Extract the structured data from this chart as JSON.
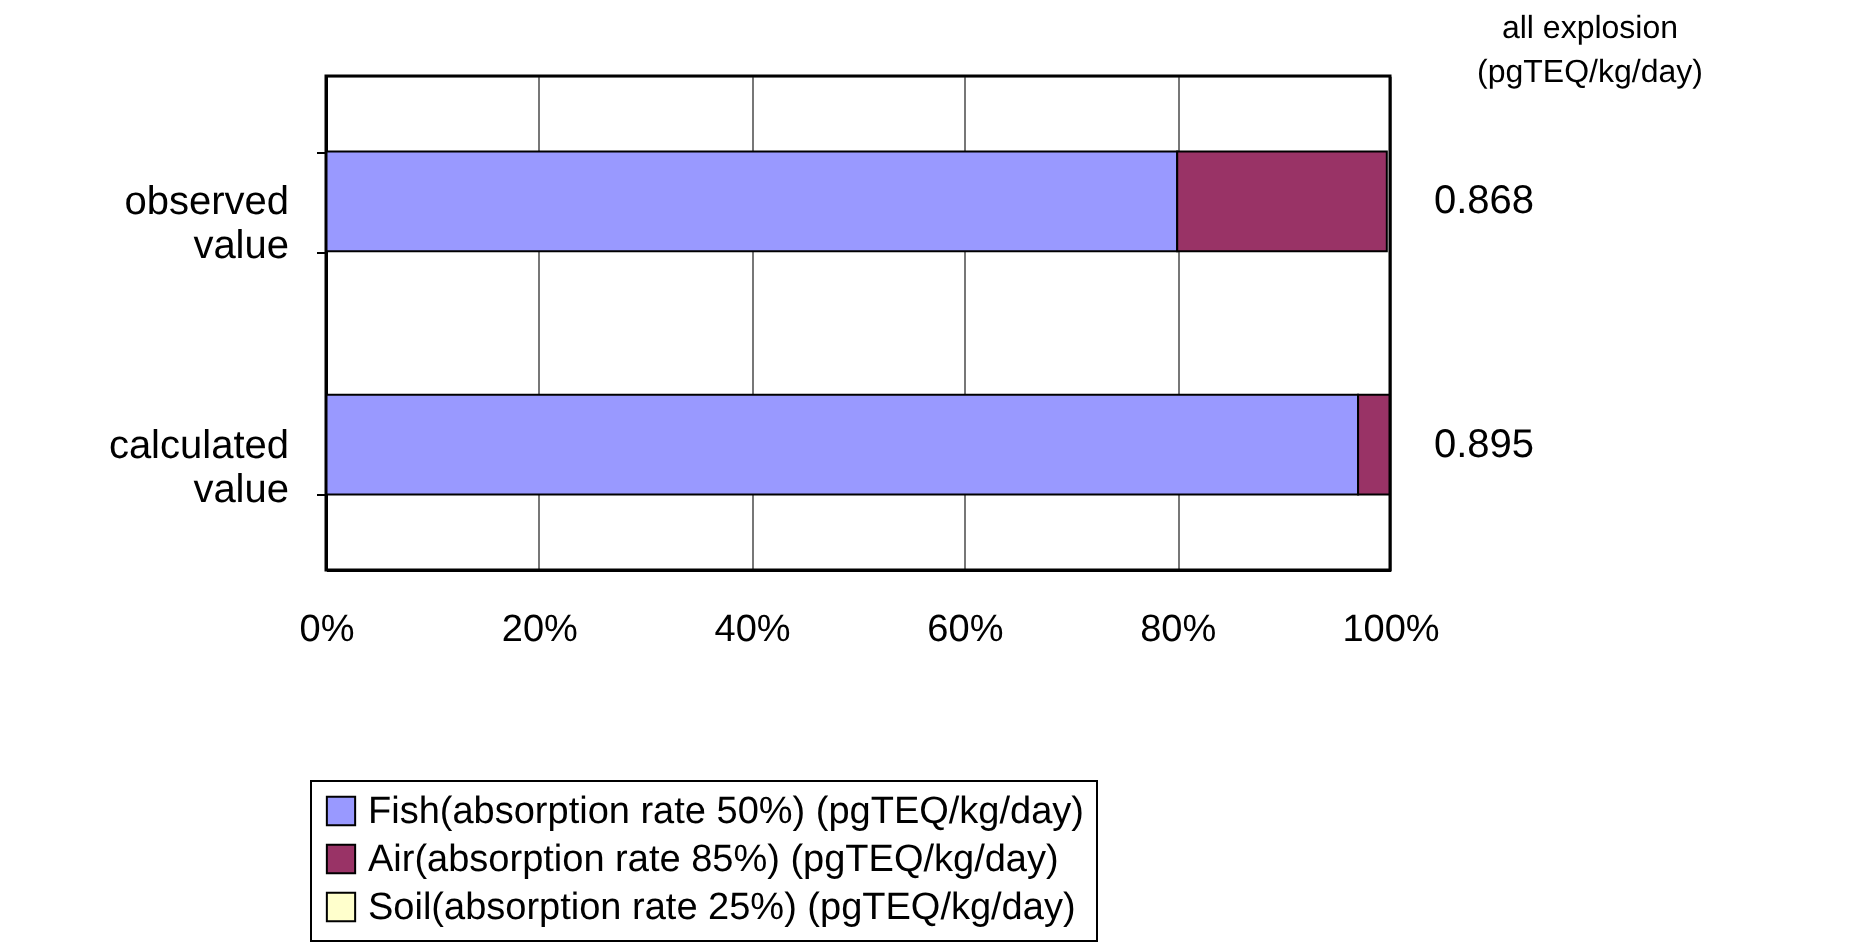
{
  "chart_data": {
    "type": "bar",
    "orientation": "horizontal",
    "stacked": true,
    "categories": [
      "observed value",
      "calculated value"
    ],
    "series": [
      {
        "name": "Fish(absorption rate 50%) (pgTEQ/kg/day)",
        "color": "#9999ff",
        "values": [
          80,
          97
        ]
      },
      {
        "name": "Air(absorption rate 85%) (pgTEQ/kg/day)",
        "color": "#993366",
        "values": [
          19.7,
          3
        ]
      },
      {
        "name": "Soil(absorption rate 25%) (pgTEQ/kg/day)",
        "color": "#ffffcc",
        "values": [
          null,
          0
        ]
      }
    ],
    "xlim": [
      0,
      100
    ],
    "xticks": [
      {
        "value": 0,
        "label": "0%"
      },
      {
        "value": 20,
        "label": "20%"
      },
      {
        "value": 40,
        "label": "40%"
      },
      {
        "value": 60,
        "label": "60%"
      },
      {
        "value": 80,
        "label": "80%"
      },
      {
        "value": 100,
        "label": "100%"
      }
    ],
    "annotations": [
      "all explosion (pgTEQ/kg/day)",
      {
        "text": "0.868",
        "x": 100,
        "y": "observed value"
      },
      {
        "text": "0.895",
        "x": 100,
        "y": "calculated value"
      }
    ],
    "grid": "x",
    "legend": "bottom"
  }
}
